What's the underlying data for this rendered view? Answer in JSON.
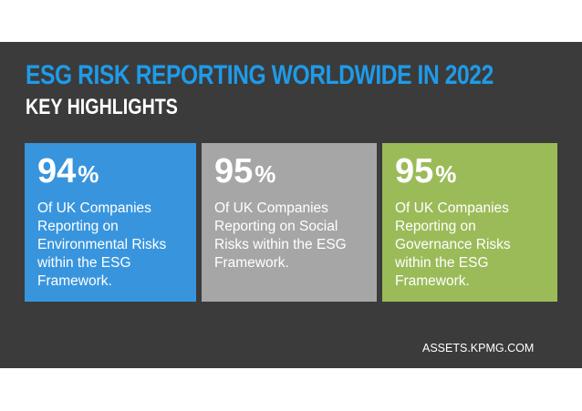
{
  "header": {
    "title": "ESG RISK REPORTING WORLDWIDE IN 2022",
    "subtitle": "KEY HIGHLIGHTS"
  },
  "cards": [
    {
      "value": "94",
      "unit": "%",
      "text": "Of UK Companies Reporting on Environmental Risks within the ESG Framework."
    },
    {
      "value": "95",
      "unit": "%",
      "text": "Of UK Companies Reporting on Social Risks within the ESG Framework."
    },
    {
      "value": "95",
      "unit": "%",
      "text": "Of UK Companies Reporting on Governance Risks within the ESG Framework."
    }
  ],
  "source": "ASSETS.KPMG.COM",
  "colors": {
    "background_panel": "#3b3b3b",
    "title": "#1e9be9",
    "subtitle": "#ffffff",
    "card_environmental": "#3895dd",
    "card_social": "#a6a6a6",
    "card_governance": "#9bbb59",
    "text": "#ffffff"
  }
}
